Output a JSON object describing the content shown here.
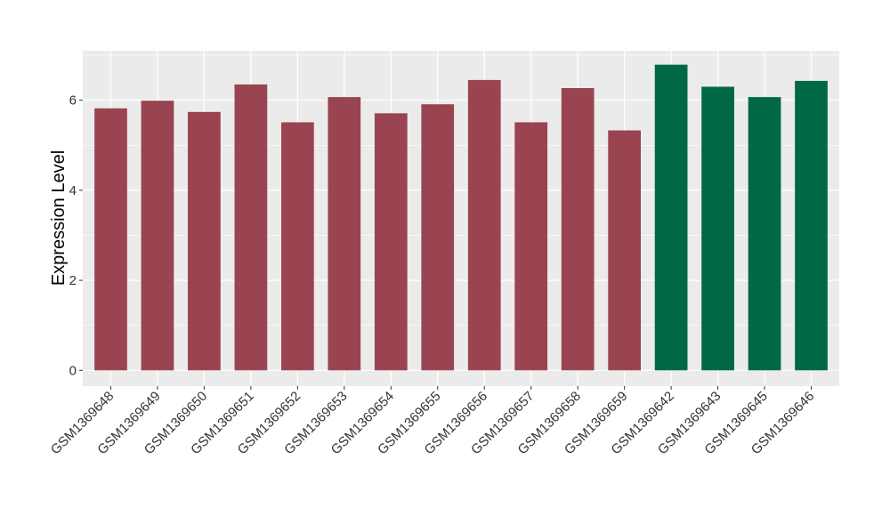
{
  "chart_data": {
    "type": "bar",
    "title": "",
    "xlabel": "",
    "ylabel": "Expression Level",
    "ylim": [
      -0.35,
      7.1
    ],
    "yticks": [
      0,
      2,
      4,
      6
    ],
    "grid": true,
    "legend": "none",
    "panel_color": "#EBEBEB",
    "gridline_color": "#FFFFFF",
    "categories": [
      "GSM1369648",
      "GSM1369649",
      "GSM1369650",
      "GSM1369651",
      "GSM1369652",
      "GSM1369653",
      "GSM1369654",
      "GSM1369655",
      "GSM1369656",
      "GSM1369657",
      "GSM1369658",
      "GSM1369659",
      "GSM1369642",
      "GSM1369643",
      "GSM1369645",
      "GSM1369646"
    ],
    "values": [
      5.82,
      5.99,
      5.74,
      6.35,
      5.51,
      6.07,
      5.71,
      5.91,
      6.45,
      5.51,
      6.27,
      5.33,
      6.79,
      6.3,
      6.07,
      6.43
    ],
    "bar_colors": [
      "#9A4451",
      "#9A4451",
      "#9A4451",
      "#9A4451",
      "#9A4451",
      "#9A4451",
      "#9A4451",
      "#9A4451",
      "#9A4451",
      "#9A4451",
      "#9A4451",
      "#9A4451",
      "#006845",
      "#006845",
      "#006845",
      "#006845"
    ]
  }
}
